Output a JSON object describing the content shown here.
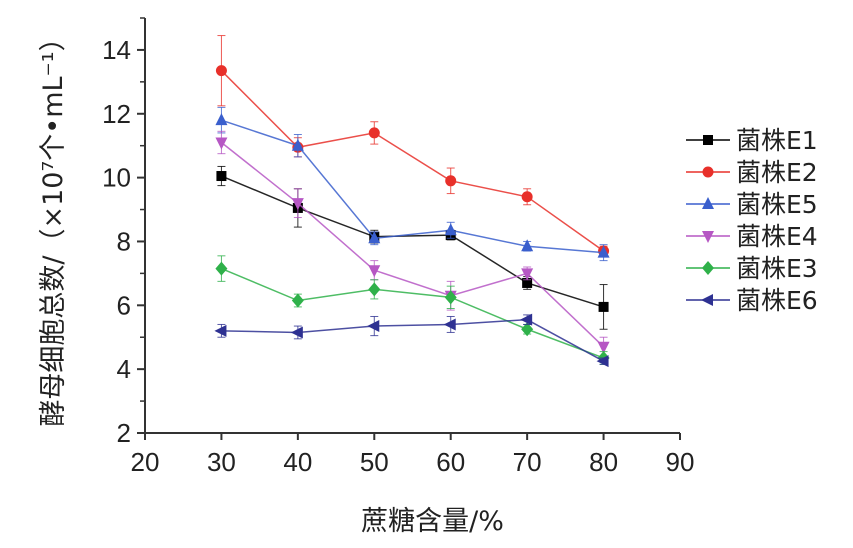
{
  "chart_data": {
    "type": "line",
    "title": "",
    "xlabel": "蔗糖含量/%",
    "ylabel": "酵母细胞总数/（×10⁷个•mL⁻¹）",
    "xlim": [
      20,
      90
    ],
    "ylim": [
      2,
      15
    ],
    "xticks": [
      "20",
      "30",
      "40",
      "50",
      "60",
      "70",
      "80",
      "90"
    ],
    "yticks": [
      "2",
      "4",
      "6",
      "8",
      "10",
      "12",
      "14"
    ],
    "x": [
      30,
      40,
      50,
      60,
      70,
      80
    ],
    "grid": false,
    "legend_position": "right",
    "series": [
      {
        "name": "菌株E1",
        "color": "#000000",
        "marker": "square",
        "values": [
          10.05,
          9.05,
          8.15,
          8.2,
          6.7,
          5.95
        ],
        "errors": [
          0.3,
          0.6,
          0.2,
          0.15,
          0.2,
          0.7
        ]
      },
      {
        "name": "菌株E2",
        "color": "#e8302a",
        "marker": "circle",
        "values": [
          13.35,
          10.95,
          11.4,
          9.9,
          9.4,
          7.7
        ],
        "errors": [
          1.1,
          0.3,
          0.35,
          0.4,
          0.25,
          0.15
        ]
      },
      {
        "name": "菌株E5",
        "color": "#3a5fcd",
        "marker": "triangle-up",
        "values": [
          11.8,
          11.0,
          8.1,
          8.35,
          7.85,
          7.65
        ],
        "errors": [
          0.4,
          0.35,
          0.2,
          0.25,
          0.15,
          0.25
        ]
      },
      {
        "name": "菌株E4",
        "color": "#b657c4",
        "marker": "triangle-down",
        "values": [
          11.1,
          9.2,
          7.1,
          6.3,
          7.0,
          4.7
        ],
        "errors": [
          0.35,
          0.45,
          0.3,
          0.45,
          0.2,
          0.3
        ]
      },
      {
        "name": "菌株E3",
        "color": "#2fb14a",
        "marker": "diamond",
        "values": [
          7.15,
          6.15,
          6.5,
          6.25,
          5.25,
          4.35
        ],
        "errors": [
          0.4,
          0.2,
          0.3,
          0.35,
          0.15,
          0.2
        ]
      },
      {
        "name": "菌株E6",
        "color": "#2e3192",
        "marker": "triangle-left",
        "values": [
          5.2,
          5.15,
          5.35,
          5.4,
          5.55,
          4.25
        ],
        "errors": [
          0.2,
          0.2,
          0.3,
          0.25,
          0.15,
          0.1
        ]
      }
    ]
  }
}
